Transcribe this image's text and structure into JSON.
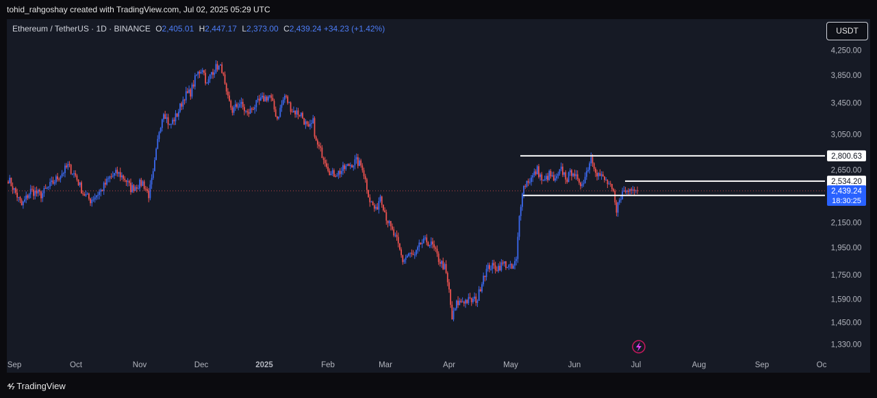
{
  "header": {
    "text": "tohid_rahgoshay created with TradingView.com, Jul 02, 2025 05:29 UTC"
  },
  "legend": {
    "symbol": "Ethereum / TetherUS · 1D · BINANCE",
    "o_label": "O",
    "o_value": "2,405.01",
    "h_label": "H",
    "h_value": "2,447.17",
    "l_label": "L",
    "l_value": "2,373.00",
    "c_label": "C",
    "c_value": "2,439.24",
    "change": "+34.23 (+1.42%)"
  },
  "currency_button": "USDT",
  "footer": {
    "brand": "TradingView"
  },
  "colors": {
    "up": "#3c6af0",
    "down": "#ef5350",
    "background": "#161a25",
    "grid_text": "#b2b5be",
    "price_label_bg": "#2962ff"
  },
  "chart_data": {
    "type": "candlestick",
    "symbol": "Ethereum / TetherUS",
    "interval": "1D",
    "exchange": "BINANCE",
    "y_axis": {
      "scale": "log",
      "ticks": [
        "4,250.00",
        "3,850.00",
        "3,450.00",
        "3,050.00",
        "2,650.00",
        "2,150.00",
        "1,950.00",
        "1,750.00",
        "1,590.00",
        "1,450.00",
        "1,330.00"
      ]
    },
    "x_axis": {
      "ticks": [
        "Sep",
        "Oct",
        "Nov",
        "Dec",
        "2025",
        "Feb",
        "Mar",
        "Apr",
        "May",
        "Jun",
        "Jul",
        "Aug",
        "Sep",
        "Oc"
      ]
    },
    "horizontal_levels": [
      {
        "label": "2,800.63"
      },
      {
        "label": "2,534.20"
      },
      {
        "label": "2,394.88"
      }
    ],
    "last_price": {
      "label": "2,439.24",
      "countdown": "18:30:25"
    },
    "waypoints": [
      [
        0,
        2560
      ],
      [
        6,
        2390
      ],
      [
        9,
        2300
      ],
      [
        15,
        2440
      ],
      [
        22,
        2400
      ],
      [
        28,
        2490
      ],
      [
        35,
        2600
      ],
      [
        40,
        2690
      ],
      [
        45,
        2590
      ],
      [
        50,
        2420
      ],
      [
        55,
        2350
      ],
      [
        62,
        2440
      ],
      [
        68,
        2570
      ],
      [
        73,
        2620
      ],
      [
        78,
        2560
      ],
      [
        82,
        2460
      ],
      [
        86,
        2490
      ],
      [
        90,
        2520
      ],
      [
        94,
        2400
      ],
      [
        97,
        2600
      ],
      [
        101,
        3100
      ],
      [
        104,
        3350
      ],
      [
        108,
        3150
      ],
      [
        113,
        3300
      ],
      [
        118,
        3550
      ],
      [
        122,
        3600
      ],
      [
        126,
        3850
      ],
      [
        130,
        3970
      ],
      [
        133,
        3700
      ],
      [
        136,
        3900
      ],
      [
        140,
        3990
      ],
      [
        143,
        3950
      ],
      [
        146,
        3550
      ],
      [
        150,
        3350
      ],
      [
        155,
        3450
      ],
      [
        160,
        3300
      ],
      [
        164,
        3400
      ],
      [
        170,
        3500
      ],
      [
        175,
        3550
      ],
      [
        180,
        3250
      ],
      [
        185,
        3550
      ],
      [
        190,
        3350
      ],
      [
        196,
        3300
      ],
      [
        201,
        3100
      ],
      [
        204,
        3200
      ],
      [
        206,
        2950
      ],
      [
        212,
        2760
      ],
      [
        216,
        2600
      ],
      [
        222,
        2630
      ],
      [
        228,
        2700
      ],
      [
        233,
        2740
      ],
      [
        237,
        2680
      ],
      [
        242,
        2350
      ],
      [
        246,
        2250
      ],
      [
        249,
        2400
      ],
      [
        253,
        2200
      ],
      [
        256,
        2100
      ],
      [
        260,
        2000
      ],
      [
        264,
        1850
      ],
      [
        268,
        1900
      ],
      [
        272,
        1880
      ],
      [
        276,
        1980
      ],
      [
        280,
        2000
      ],
      [
        284,
        1960
      ],
      [
        288,
        1860
      ],
      [
        292,
        1800
      ],
      [
        295,
        1640
      ],
      [
        297,
        1470
      ],
      [
        300,
        1560
      ],
      [
        304,
        1580
      ],
      [
        310,
        1580
      ],
      [
        314,
        1590
      ],
      [
        318,
        1750
      ],
      [
        322,
        1810
      ],
      [
        327,
        1800
      ],
      [
        332,
        1830
      ],
      [
        337,
        1790
      ],
      [
        340,
        1850
      ],
      [
        342,
        2200
      ],
      [
        344,
        2450
      ],
      [
        347,
        2530
      ],
      [
        350,
        2560
      ],
      [
        354,
        2650
      ],
      [
        358,
        2520
      ],
      [
        362,
        2600
      ],
      [
        366,
        2530
      ],
      [
        370,
        2650
      ],
      [
        374,
        2560
      ],
      [
        378,
        2650
      ],
      [
        382,
        2480
      ],
      [
        386,
        2580
      ],
      [
        390,
        2790
      ],
      [
        394,
        2620
      ],
      [
        398,
        2560
      ],
      [
        402,
        2500
      ],
      [
        405,
        2400
      ],
      [
        407,
        2230
      ],
      [
        409,
        2380
      ],
      [
        412,
        2430
      ],
      [
        415,
        2440
      ],
      [
        418,
        2490
      ],
      [
        421,
        2439
      ]
    ]
  }
}
